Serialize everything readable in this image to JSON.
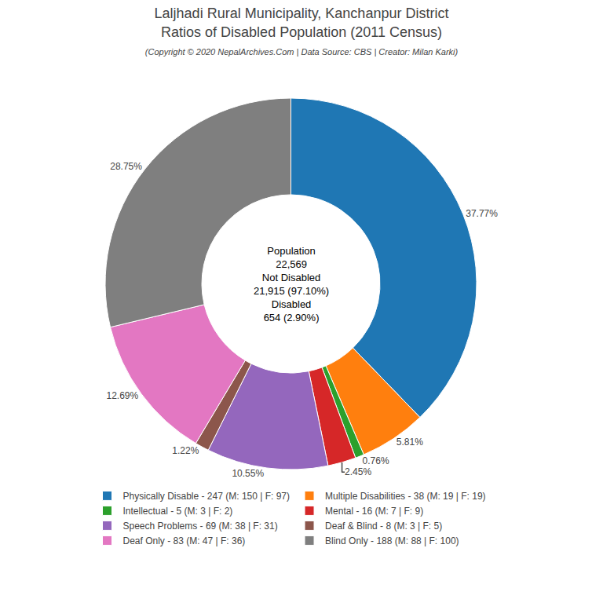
{
  "chart_data": {
    "type": "pie",
    "title": "Laljhadi Rural Municipality, Kanchanpur District\nRatios of Disabled Population (2011 Census)",
    "subtitle": "(Copyright © 2020 NepalArchives.Com | Data Source: CBS | Creator: Milan Karki)",
    "categories": [
      "Physically Disable - 247 (M: 150 | F: 97)",
      "Multiple Disabilities - 38 (M: 19 | F: 19)",
      "Intellectual - 5 (M: 3 | F: 2)",
      "Mental - 16 (M: 7 | F: 9)",
      "Speech Problems - 69 (M: 38 | F: 31)",
      "Deaf & Blind - 8 (M: 3 | F: 5)",
      "Deaf Only - 83 (M: 47 | F: 36)",
      "Blind Only - 188 (M: 88 | F: 100)"
    ],
    "values": [
      37.77,
      5.81,
      0.76,
      2.45,
      10.55,
      1.22,
      12.69,
      28.75
    ],
    "value_labels": [
      "37.77%",
      "5.81%",
      "0.76%",
      "2.45%",
      "10.55%",
      "1.22%",
      "12.69%",
      "28.75%"
    ],
    "data_labels": true,
    "annotations": [
      "Population",
      "22,569",
      "Not Disabled",
      "21,915 (97.10%)",
      "Disabled",
      "654 (2.90%)"
    ],
    "legend": "bottom"
  }
}
